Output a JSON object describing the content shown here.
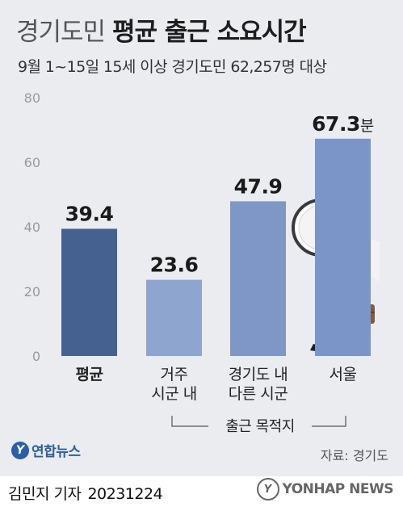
{
  "header": {
    "title_light": "경기도민",
    "title_bold": "평균 출근 소요시간",
    "subtitle": "9월 1~15일 15세 이상 경기도민 62,257명 대상"
  },
  "chart_data": {
    "type": "bar",
    "categories": [
      "평균",
      "거주\n시군 내",
      "경기도 내\n다른 시군",
      "서울"
    ],
    "values": [
      39.4,
      23.6,
      47.9,
      67.3
    ],
    "value_labels": [
      "39.4",
      "23.6",
      "47.9",
      "67.3"
    ],
    "unit": "분",
    "ylim": [
      0,
      80
    ],
    "yticks": [
      0,
      20,
      40,
      60,
      80
    ],
    "group_label": "출근 목적지",
    "grid": false,
    "colors": [
      "#44618f",
      "#8ea5d0",
      "#7f97c7",
      "#7c95c9"
    ]
  },
  "footer": {
    "source": "자료: 경기도",
    "reporter": "김민지 기자",
    "date": "20231224",
    "logo_left_mark": "Y",
    "logo_left_text": "연합뉴스",
    "logo_right_mark": "Y",
    "logo_right_text": "YONHAP NEWS"
  },
  "icons": [
    "clock-icon",
    "commuter-man-illustration"
  ]
}
